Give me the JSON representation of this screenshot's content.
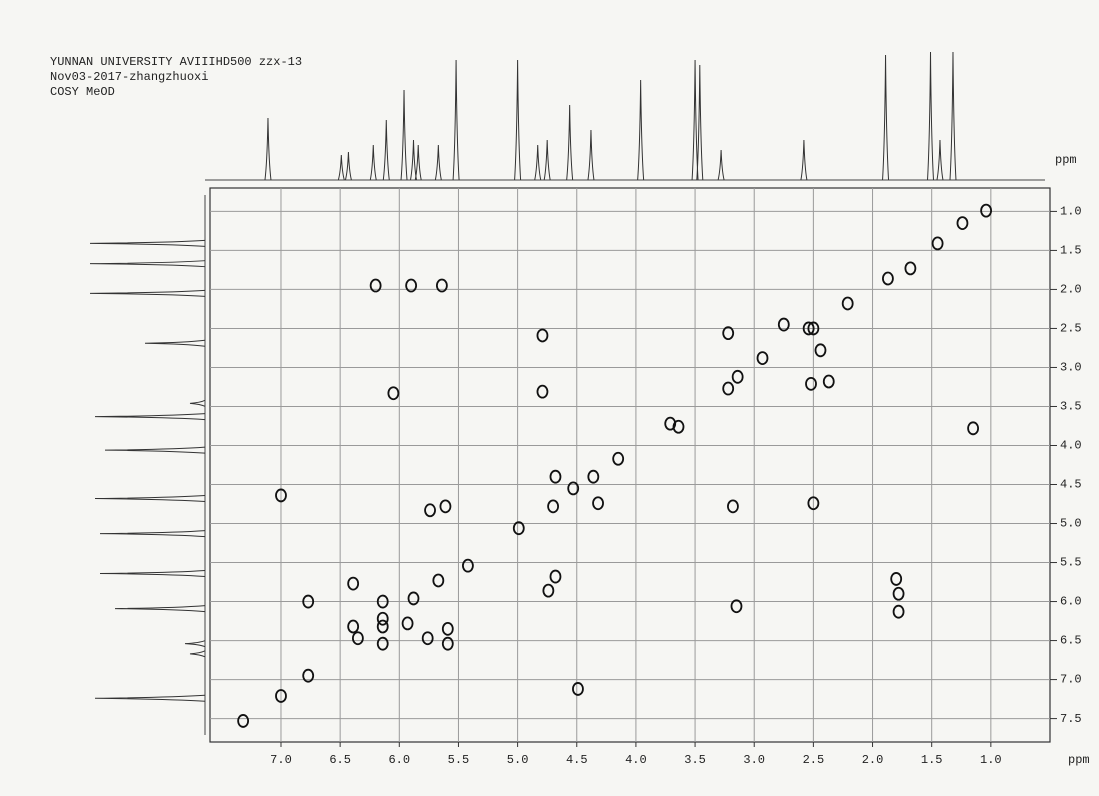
{
  "chart_data": {
    "type": "scatter",
    "title_lines": [
      "YUNNAN UNIVERSITY AVIIIHD500 zzx-13",
      "Nov03-2017-zhangzhuoxi",
      "COSY  MeOD"
    ],
    "xlabel": "ppm",
    "ylabel": "ppm",
    "xlim": [
      7.6,
      0.5
    ],
    "ylim": [
      0.7,
      7.8
    ],
    "xticks": [
      {
        "value": 7,
        "label": "7.0"
      },
      6.5,
      {
        "value": 6,
        "label": "6.0"
      },
      5.5,
      {
        "value": 5,
        "label": "5.0"
      },
      4.5,
      {
        "value": 4,
        "label": "4.0"
      },
      3.5,
      {
        "value": 3,
        "label": "3.0"
      },
      2.5,
      {
        "value": 2,
        "label": "2.0"
      },
      1.5,
      {
        "value": 1,
        "label": "1.0"
      }
    ],
    "yticks": [
      {
        "value": 1,
        "label": "1.0"
      },
      1.5,
      {
        "value": 2,
        "label": "2.0"
      },
      2.5,
      {
        "value": 3,
        "label": "3.0"
      },
      3.5,
      {
        "value": 4,
        "label": "4.0"
      },
      4.5,
      {
        "value": 5,
        "label": "5.0"
      },
      5.5,
      {
        "value": 6,
        "label": "6.0"
      },
      6.5,
      {
        "value": 7,
        "label": "7.0"
      },
      7.5
    ],
    "grid": true,
    "color": "#111111",
    "x": [
      6.2,
      5.9,
      5.64,
      4.79,
      4.79,
      6.05,
      3.22,
      3.22,
      2.75,
      2.54,
      2.52,
      2.44,
      2.37,
      1.87,
      1.04,
      1.24,
      1.45,
      1.68,
      2.21,
      2.5,
      2.93,
      3.14,
      3.64,
      4.15,
      4.36,
      4.53,
      4.7,
      4.99,
      5.42,
      5.67,
      5.88,
      6.14,
      6.35,
      6.77,
      4.68,
      4.32,
      3.18,
      2.5,
      4.68,
      4.74,
      3.15,
      1.8,
      1.78,
      1.78,
      5.74,
      5.61,
      7.0,
      7.0,
      6.39,
      6.39,
      6.14,
      6.14,
      6.14,
      5.93,
      5.76,
      5.59,
      5.59,
      6.77,
      4.49,
      7.32,
      1.15,
      3.71
    ],
    "y": [
      1.95,
      1.95,
      1.95,
      2.59,
      3.31,
      3.33,
      2.56,
      3.27,
      2.45,
      2.5,
      3.21,
      2.78,
      3.18,
      1.86,
      0.99,
      1.15,
      1.41,
      1.73,
      2.18,
      2.5,
      2.88,
      3.12,
      3.76,
      4.17,
      4.4,
      4.55,
      4.78,
      5.06,
      5.54,
      5.73,
      5.96,
      6.22,
      6.47,
      6.95,
      4.4,
      4.74,
      4.78,
      4.74,
      5.68,
      5.86,
      6.06,
      5.71,
      5.9,
      6.13,
      4.83,
      4.78,
      7.21,
      4.64,
      5.77,
      6.32,
      6.0,
      6.32,
      6.54,
      6.28,
      6.47,
      6.54,
      6.35,
      6.0,
      7.12,
      7.53,
      3.78,
      3.72
    ],
    "top_projection": {
      "x": [
        7.11,
        6.49,
        6.43,
        6.22,
        6.11,
        5.96,
        5.88,
        5.84,
        5.67,
        5.52,
        5.0,
        4.83,
        4.75,
        4.56,
        4.38,
        3.96,
        3.5,
        3.46,
        3.28,
        2.58,
        1.89,
        1.51,
        1.43,
        1.32
      ],
      "values": [
        62,
        25,
        28,
        35,
        60,
        90,
        40,
        35,
        35,
        120,
        120,
        35,
        40,
        75,
        50,
        100,
        120,
        115,
        30,
        40,
        125,
        128,
        40,
        128
      ]
    },
    "left_projection": {
      "y": [
        1.41,
        1.67,
        2.05,
        2.69,
        3.46,
        3.63,
        4.06,
        4.68,
        5.13,
        5.64,
        6.09,
        6.54,
        6.67,
        7.24
      ],
      "values": [
        115,
        115,
        115,
        60,
        15,
        110,
        100,
        110,
        105,
        105,
        90,
        20,
        15,
        110
      ]
    }
  }
}
